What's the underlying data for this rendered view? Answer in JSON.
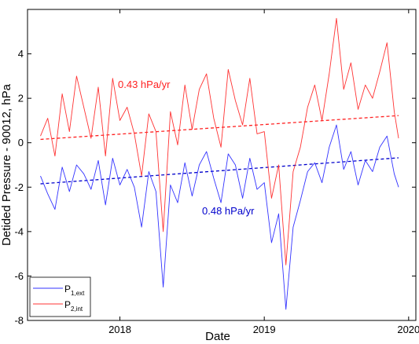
{
  "chart_data": {
    "type": "line",
    "xlabel": "Date",
    "ylabel": "Detided Pressure - 90012, hPa",
    "xlim": [
      2017.36,
      2020.05
    ],
    "ylim": [
      -8,
      6
    ],
    "x_ticks": [
      2018,
      2019,
      2020
    ],
    "x_tick_labels": [
      "2018",
      "2019",
      "2020"
    ],
    "y_ticks": [
      -8,
      -6,
      -4,
      -2,
      0,
      2,
      4
    ],
    "y_tick_labels": [
      "-8",
      "-6",
      "-4",
      "-2",
      "0",
      "2",
      "4"
    ],
    "grid": false,
    "legend_position": "bottom-left",
    "series": [
      {
        "key": "p1",
        "legend": {
          "base": "P",
          "sub": "1,ext"
        },
        "color": "#3333ff",
        "x": [
          2017.45,
          2017.5,
          2017.55,
          2017.6,
          2017.65,
          2017.7,
          2017.75,
          2017.8,
          2017.85,
          2017.9,
          2017.95,
          2018.0,
          2018.05,
          2018.1,
          2018.15,
          2018.2,
          2018.25,
          2018.3,
          2018.35,
          2018.4,
          2018.45,
          2018.5,
          2018.55,
          2018.6,
          2018.65,
          2018.7,
          2018.75,
          2018.8,
          2018.85,
          2018.9,
          2018.95,
          2019.0,
          2019.05,
          2019.1,
          2019.15,
          2019.2,
          2019.25,
          2019.3,
          2019.35,
          2019.4,
          2019.45,
          2019.5,
          2019.55,
          2019.6,
          2019.65,
          2019.7,
          2019.75,
          2019.8,
          2019.85,
          2019.9,
          2019.93
        ],
        "values": [
          -1.5,
          -2.3,
          -3.0,
          -1.1,
          -2.2,
          -1.0,
          -1.4,
          -2.1,
          -0.8,
          -2.8,
          -0.7,
          -1.9,
          -1.2,
          -2.0,
          -3.8,
          -1.3,
          -2.2,
          -6.5,
          -1.9,
          -2.7,
          -0.9,
          -2.4,
          -1.0,
          -0.4,
          -1.6,
          -2.7,
          -0.5,
          -1.0,
          -2.5,
          -0.7,
          -2.1,
          -1.8,
          -4.5,
          -3.2,
          -7.5,
          -3.8,
          -2.6,
          -1.3,
          -0.9,
          -1.8,
          -0.2,
          0.8,
          -1.2,
          -0.4,
          -1.9,
          -0.8,
          -1.3,
          -0.2,
          0.3,
          -1.4,
          -2.0
        ]
      },
      {
        "key": "p2",
        "legend": {
          "base": "P",
          "sub": "2,int"
        },
        "color": "#ff3333",
        "x": [
          2017.45,
          2017.5,
          2017.55,
          2017.6,
          2017.65,
          2017.7,
          2017.75,
          2017.8,
          2017.85,
          2017.9,
          2017.95,
          2018.0,
          2018.05,
          2018.1,
          2018.15,
          2018.2,
          2018.25,
          2018.3,
          2018.35,
          2018.4,
          2018.45,
          2018.5,
          2018.55,
          2018.6,
          2018.65,
          2018.7,
          2018.75,
          2018.8,
          2018.85,
          2018.9,
          2018.95,
          2019.0,
          2019.05,
          2019.1,
          2019.15,
          2019.2,
          2019.25,
          2019.3,
          2019.35,
          2019.4,
          2019.45,
          2019.5,
          2019.55,
          2019.6,
          2019.65,
          2019.7,
          2019.75,
          2019.8,
          2019.85,
          2019.9,
          2019.93
        ],
        "values": [
          0.3,
          1.1,
          -0.6,
          2.2,
          0.5,
          3.0,
          1.6,
          0.2,
          2.5,
          -0.6,
          2.9,
          1.0,
          1.6,
          0.4,
          -1.5,
          1.3,
          0.5,
          -4.0,
          1.4,
          -0.1,
          2.6,
          0.6,
          2.4,
          3.1,
          1.1,
          -0.2,
          3.3,
          1.9,
          0.8,
          2.9,
          0.4,
          0.5,
          -2.5,
          -1.0,
          -5.5,
          -1.3,
          -0.2,
          1.6,
          2.6,
          1.0,
          3.1,
          5.6,
          2.4,
          3.6,
          1.5,
          2.6,
          2.0,
          3.2,
          4.5,
          1.4,
          0.2
        ]
      }
    ],
    "trend_lines": [
      {
        "key": "p1_trend",
        "color": "#0000cc",
        "x": [
          2017.45,
          2019.93
        ],
        "values": [
          -1.85,
          -0.68
        ]
      },
      {
        "key": "p2_trend",
        "color": "#ff2222",
        "x": [
          2017.45,
          2019.93
        ],
        "values": [
          0.15,
          1.22
        ]
      }
    ],
    "annotations": [
      {
        "key": "p2_rate",
        "text": "0.43 hPa/yr",
        "color": "#ff2222"
      },
      {
        "key": "p1_rate",
        "text": "0.48 hPa/yr",
        "color": "#0000cc"
      }
    ]
  }
}
